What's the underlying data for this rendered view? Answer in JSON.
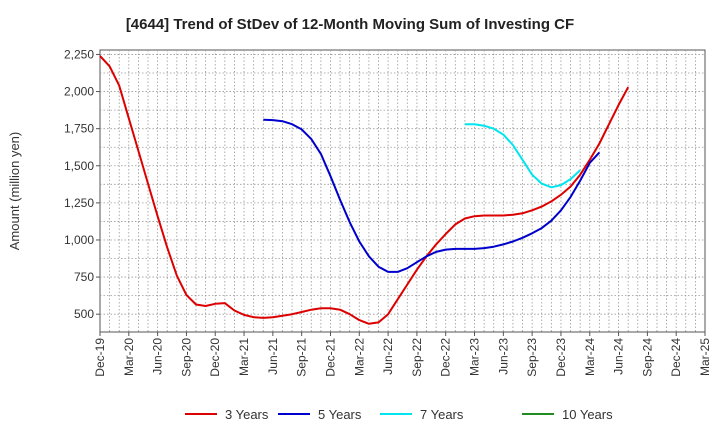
{
  "chart_data": {
    "type": "line",
    "title": "[4644]  Trend of StDev of 12-Month Moving Sum of Investing CF",
    "ylabel": "Amount (million yen)",
    "xlabel": "",
    "ylim": [
      380,
      2280
    ],
    "yticks": [
      500,
      750,
      1000,
      1250,
      1500,
      1750,
      2000,
      2250
    ],
    "ytick_labels": [
      "500",
      "750",
      "1,000",
      "1,250",
      "1,500",
      "1,750",
      "2,000",
      "2,250"
    ],
    "xticks": [
      "Dec-19",
      "Mar-20",
      "Jun-20",
      "Sep-20",
      "Dec-20",
      "Mar-21",
      "Jun-21",
      "Sep-21",
      "Dec-21",
      "Mar-22",
      "Jun-22",
      "Sep-22",
      "Dec-22",
      "Mar-23",
      "Jun-23",
      "Sep-23",
      "Dec-23",
      "Mar-24",
      "Jun-24",
      "Sep-24",
      "Dec-24",
      "Mar-25"
    ],
    "grid": true,
    "legend_position": "bottom",
    "series": [
      {
        "name": "3 Years",
        "color": "#dd0000",
        "values": [
          2240,
          2170,
          2040,
          1820,
          1600,
          1380,
          1160,
          950,
          760,
          630,
          565,
          555,
          570,
          575,
          525,
          495,
          480,
          475,
          480,
          490,
          500,
          515,
          530,
          540,
          540,
          530,
          500,
          460,
          435,
          445,
          500,
          600,
          700,
          800,
          890,
          970,
          1040,
          1105,
          1145,
          1160,
          1165,
          1165,
          1165,
          1170,
          1180,
          1200,
          1225,
          1260,
          1305,
          1360,
          1440,
          1540,
          1650,
          1780,
          1910,
          2030
        ]
      },
      {
        "name": "5 Years",
        "color": "#0000cc",
        "offset": 17,
        "values": [
          1810,
          1808,
          1800,
          1780,
          1745,
          1680,
          1580,
          1430,
          1270,
          1120,
          990,
          890,
          820,
          785,
          785,
          810,
          850,
          890,
          920,
          935,
          940,
          940,
          940,
          945,
          955,
          970,
          990,
          1015,
          1045,
          1080,
          1130,
          1200,
          1290,
          1400,
          1520,
          1590
        ]
      },
      {
        "name": "7 Years",
        "color": "#00e5ee",
        "offset": 38,
        "values": [
          1780,
          1780,
          1770,
          1750,
          1710,
          1640,
          1540,
          1440,
          1380,
          1355,
          1370,
          1410,
          1470
        ]
      },
      {
        "name": "10 Years",
        "color": "#228b22",
        "values": []
      }
    ]
  }
}
